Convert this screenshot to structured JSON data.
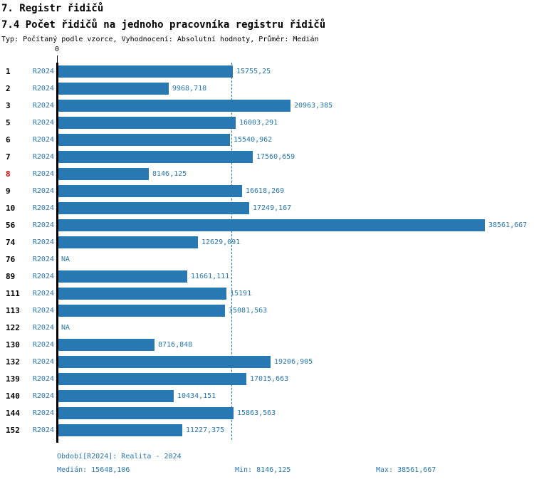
{
  "header": {
    "title": "7. Registr řidičů",
    "subtitle": "7.4 Počet řidičů na jednoho pracovníka registru řidičů",
    "meta": "Typ: Počítaný podle vzorce, Vyhodnocení: Absolutní hodnoty, Průměr: Medián"
  },
  "chart_data": {
    "type": "bar",
    "orientation": "horizontal",
    "title": "7.4 Počet řidičů na jednoho pracovníka registru řidičů",
    "xlabel": "",
    "ylabel": "",
    "xlim": [
      0,
      38561.667
    ],
    "xmax": 38561.667,
    "x_zero_label": "0",
    "median_value": 15648.106,
    "median_line": "dashed",
    "series_label": "R2024",
    "rows": [
      {
        "id": "1",
        "series": "R2024",
        "value": 15755.25,
        "display": "15755,25"
      },
      {
        "id": "2",
        "series": "R2024",
        "value": 9968.718,
        "display": "9968,718"
      },
      {
        "id": "3",
        "series": "R2024",
        "value": 20963.385,
        "display": "20963,385"
      },
      {
        "id": "5",
        "series": "R2024",
        "value": 16003.291,
        "display": "16003,291"
      },
      {
        "id": "6",
        "series": "R2024",
        "value": 15540.962,
        "display": "15540,962"
      },
      {
        "id": "7",
        "series": "R2024",
        "value": 17560.659,
        "display": "17560,659"
      },
      {
        "id": "8",
        "series": "R2024",
        "value": 8146.125,
        "display": "8146,125",
        "highlight": true
      },
      {
        "id": "9",
        "series": "R2024",
        "value": 16618.269,
        "display": "16618,269"
      },
      {
        "id": "10",
        "series": "R2024",
        "value": 17249.167,
        "display": "17249,167"
      },
      {
        "id": "56",
        "series": "R2024",
        "value": 38561.667,
        "display": "38561,667"
      },
      {
        "id": "74",
        "series": "R2024",
        "value": 12629.091,
        "display": "12629,091"
      },
      {
        "id": "76",
        "series": "R2024",
        "value": null,
        "display": "NA",
        "na": true
      },
      {
        "id": "89",
        "series": "R2024",
        "value": 11661.111,
        "display": "11661,111"
      },
      {
        "id": "111",
        "series": "R2024",
        "value": 15191,
        "display": "15191"
      },
      {
        "id": "113",
        "series": "R2024",
        "value": 15081.563,
        "display": "15081,563"
      },
      {
        "id": "122",
        "series": "R2024",
        "value": null,
        "display": "NA",
        "na": true
      },
      {
        "id": "130",
        "series": "R2024",
        "value": 8716.848,
        "display": "8716,848"
      },
      {
        "id": "132",
        "series": "R2024",
        "value": 19206.905,
        "display": "19206,905"
      },
      {
        "id": "139",
        "series": "R2024",
        "value": 17015.663,
        "display": "17015,663"
      },
      {
        "id": "140",
        "series": "R2024",
        "value": 10434.151,
        "display": "10434,151"
      },
      {
        "id": "144",
        "series": "R2024",
        "value": 15863.563,
        "display": "15863,563"
      },
      {
        "id": "152",
        "series": "R2024",
        "value": 11227.375,
        "display": "11227,375"
      }
    ]
  },
  "footer": {
    "period": "Období[R2024]: Realita - 2024",
    "median": "Medián: 15648,106",
    "min": "Min: 8146,125",
    "max": "Max: 38561,667"
  },
  "colors": {
    "bar": "#2878B4",
    "blue_text": "#2878B4",
    "highlight_red": "#E60000",
    "axis": "#000000"
  }
}
